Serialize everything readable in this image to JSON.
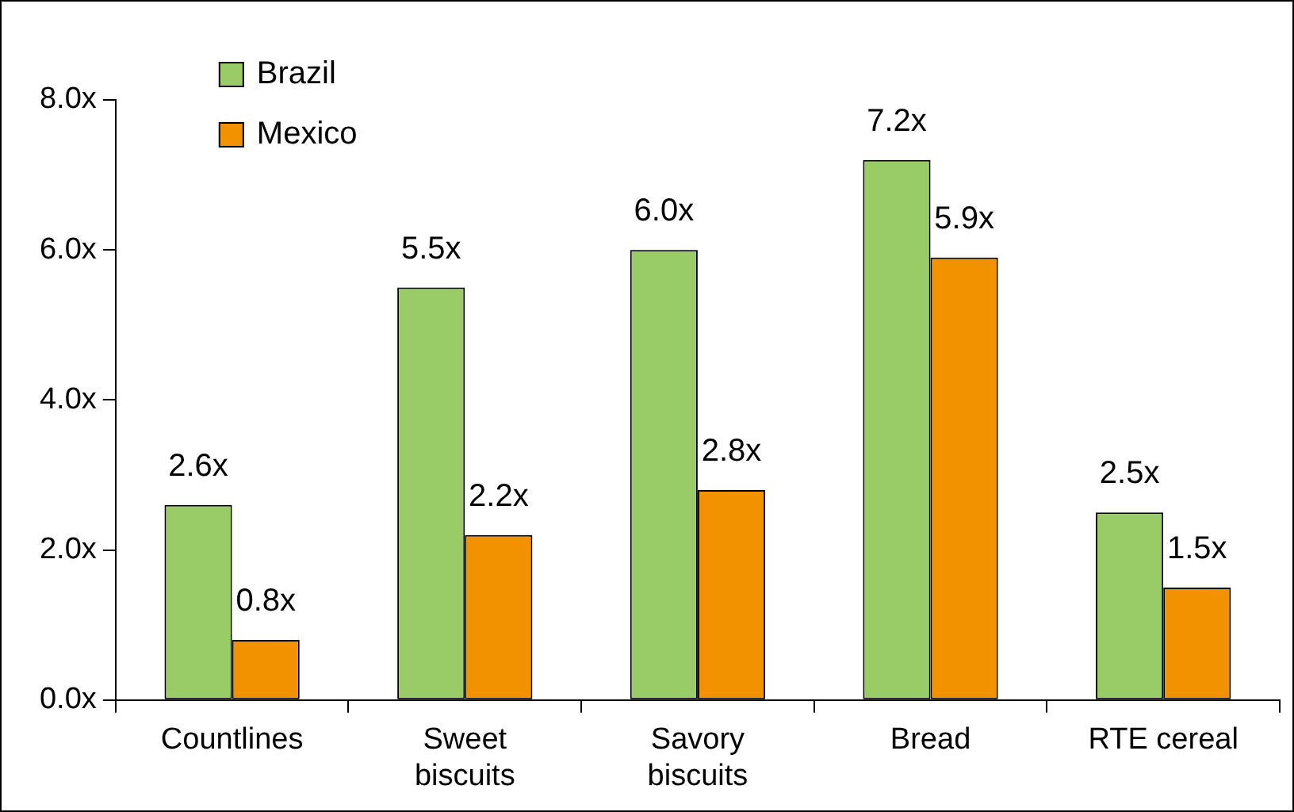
{
  "chart_data": {
    "type": "bar",
    "categories": [
      "Countlines",
      "Sweet biscuits",
      "Savory biscuits",
      "Bread",
      "RTE cereal"
    ],
    "series": [
      {
        "name": "Brazil",
        "color": "#99cc66",
        "values": [
          2.6,
          5.5,
          6.0,
          7.2,
          2.5
        ],
        "value_labels": [
          "2.6x",
          "5.5x",
          "6.0x",
          "7.2x",
          "2.5x"
        ]
      },
      {
        "name": "Mexico",
        "color": "#f39200",
        "values": [
          0.8,
          2.2,
          2.8,
          5.9,
          1.5
        ],
        "value_labels": [
          "0.8x",
          "2.2x",
          "2.8x",
          "5.9x",
          "1.5x"
        ]
      }
    ],
    "ylim": [
      0,
      8
    ],
    "yticks": [
      {
        "value": 0,
        "label": "0.0x"
      },
      {
        "value": 2,
        "label": "2.0x"
      },
      {
        "value": 4,
        "label": "4.0x"
      },
      {
        "value": 6,
        "label": "6.0x"
      },
      {
        "value": 8,
        "label": "8.0x"
      }
    ],
    "grid": false,
    "legend": "top left"
  }
}
